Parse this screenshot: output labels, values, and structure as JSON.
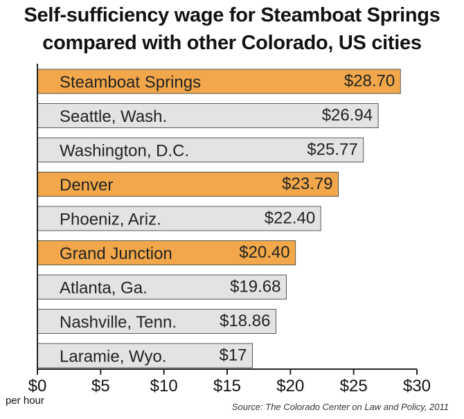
{
  "title_line1": "Self-sufficiency wage for Steamboat Springs",
  "title_line2": "compared with other Colorado, US cities",
  "unit_note": "per hour",
  "source": "Source: The Colorado Center on Law and Policy, 2011",
  "colors": {
    "highlight": "#f2a84a",
    "neutral": "#e3e3e3",
    "bar_stroke": "#555555",
    "axis": "#222222"
  },
  "chart_data": {
    "type": "bar",
    "orientation": "horizontal",
    "title": "Self-sufficiency wage for Steamboat Springs compared with other Colorado, US cities",
    "xlabel": "per hour",
    "ylabel": "",
    "xlim": [
      0,
      30
    ],
    "x_ticks": [
      0,
      5,
      10,
      15,
      20,
      25,
      30
    ],
    "x_tick_labels": [
      "$0",
      "$5",
      "$10",
      "$15",
      "$20",
      "$25",
      "$30"
    ],
    "grid": false,
    "categories": [
      "Steamboat Springs",
      "Seattle, Wash.",
      "Washington, D.C.",
      "Denver",
      "Phoeniz, Ariz.",
      "Grand Junction",
      "Atlanta, Ga.",
      "Nashville, Tenn.",
      "Laramie, Wyo."
    ],
    "values": [
      28.7,
      26.94,
      25.77,
      23.79,
      22.4,
      20.4,
      19.68,
      18.86,
      17
    ],
    "value_labels": [
      "$28.70",
      "$26.94",
      "$25.77",
      "$23.79",
      "$22.40",
      "$20.40",
      "$19.68",
      "$18.86",
      "$17"
    ],
    "highlighted": [
      true,
      false,
      false,
      true,
      false,
      true,
      false,
      false,
      false
    ]
  }
}
